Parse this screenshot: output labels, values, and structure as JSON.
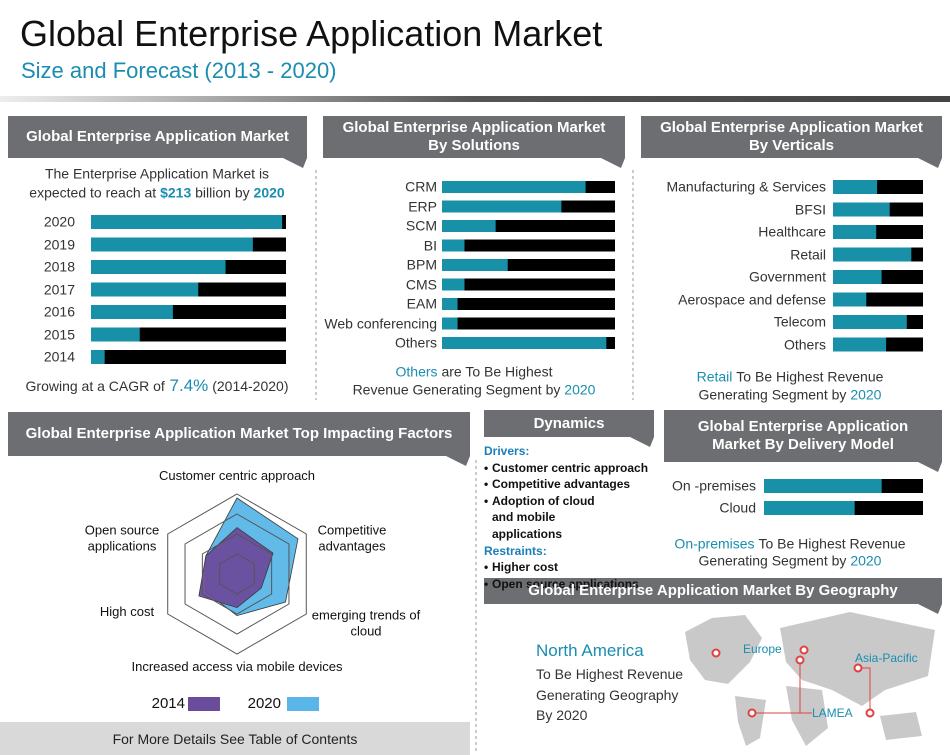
{
  "header": {
    "title": "Global Enterprise Application Market",
    "subtitle": "Size and Forecast (2013 - 2020)"
  },
  "chart_data": [
    {
      "type": "bar",
      "orientation": "horizontal",
      "title": "Global Enterprise Application Market",
      "intro": [
        [
          "The Enterprise Application Market is"
        ],
        [
          "expected to reach at",
          "$213",
          "billion by",
          "2020"
        ]
      ],
      "categories": [
        "2020",
        "2019",
        "2018",
        "2017",
        "2016",
        "2015",
        "2014"
      ],
      "values": [
        98,
        83,
        69,
        55,
        42,
        25,
        7
      ],
      "xlim": [
        0,
        100
      ],
      "color": "#1790a8",
      "track_color": "#000000",
      "note": [
        [
          "Growing at a CAGR of",
          "7.4%",
          "(2014-2020)"
        ]
      ]
    },
    {
      "type": "bar",
      "orientation": "horizontal",
      "title": "Global Enterprise Application Market By Solutions",
      "categories": [
        "CRM",
        "ERP",
        "SCM",
        "BI",
        "BPM",
        "CMS",
        "EAM",
        "Web conferencing",
        "Others"
      ],
      "values": [
        83,
        69,
        31,
        13,
        38,
        13,
        9,
        9,
        95
      ],
      "xlim": [
        0,
        100
      ],
      "color": "#1790a8",
      "track_color": "#000000",
      "note": [
        [
          "Others",
          "are To Be Highest"
        ],
        [
          "Revenue Generating Segment by",
          "2020"
        ]
      ]
    },
    {
      "type": "bar",
      "orientation": "horizontal",
      "title": "Global Enterprise Application Market By Verticals",
      "categories": [
        "Manufacturing & Services",
        "BFSI",
        "Healthcare",
        "Retail",
        "Government",
        "Aerospace and defense",
        "Telecom",
        "Others"
      ],
      "values": [
        49,
        63,
        48,
        87,
        54,
        37,
        82,
        59
      ],
      "xlim": [
        0,
        100
      ],
      "color": "#1790a8",
      "track_color": "#000000",
      "note": [
        [
          "Retail",
          "To Be Highest Revenue"
        ],
        [
          "Generating Segment by",
          "2020"
        ]
      ]
    },
    {
      "type": "bar",
      "orientation": "horizontal",
      "title": "Global Enterprise Application Market By Delivery Model",
      "categories": [
        "On -premises",
        "Cloud"
      ],
      "values": [
        74,
        57
      ],
      "xlim": [
        0,
        100
      ],
      "color": "#1790a8",
      "track_color": "#000000",
      "note": [
        [
          "On-premises",
          "To Be Highest Revenue"
        ],
        [
          "Generating Segment by",
          "2020"
        ]
      ]
    },
    {
      "type": "radar",
      "title": "Global Enterprise Application Market  Top Impacting Factors",
      "categories": [
        "Customer centric approach",
        "Competitive advantages",
        "emerging trends of cloud",
        "Increased access via mobile devices",
        "High cost",
        "Open source applications"
      ],
      "series": [
        {
          "name": "2014",
          "color": "#6a4c9c",
          "values": [
            58,
            52,
            35,
            42,
            55,
            45
          ]
        },
        {
          "name": "2020",
          "color": "#5ab6e8",
          "values": [
            95,
            88,
            70,
            52,
            45,
            45
          ]
        }
      ],
      "rlim": [
        0,
        100
      ],
      "rticks": [
        25,
        50,
        75,
        100
      ]
    }
  ],
  "dynamics": {
    "title": "Dynamics",
    "drivers_heading": "Drivers:",
    "drivers": [
      "Customer centric approach",
      "Competitive advantages",
      "Adoption of cloud and mobile applications"
    ],
    "restraints_heading": "Restraints:",
    "restraints": [
      "Higher cost",
      "Open source applications"
    ]
  },
  "geography": {
    "title": "Global Enterprise Application Market By Geography",
    "highlight": "North America",
    "text": [
      "To Be Highest Revenue",
      "Generating Geography",
      "By 2020"
    ],
    "regions": [
      "Europe",
      "Asia-Pacific",
      "LAMEA"
    ]
  },
  "footer": {
    "text": "For More Details See Table of Contents"
  }
}
